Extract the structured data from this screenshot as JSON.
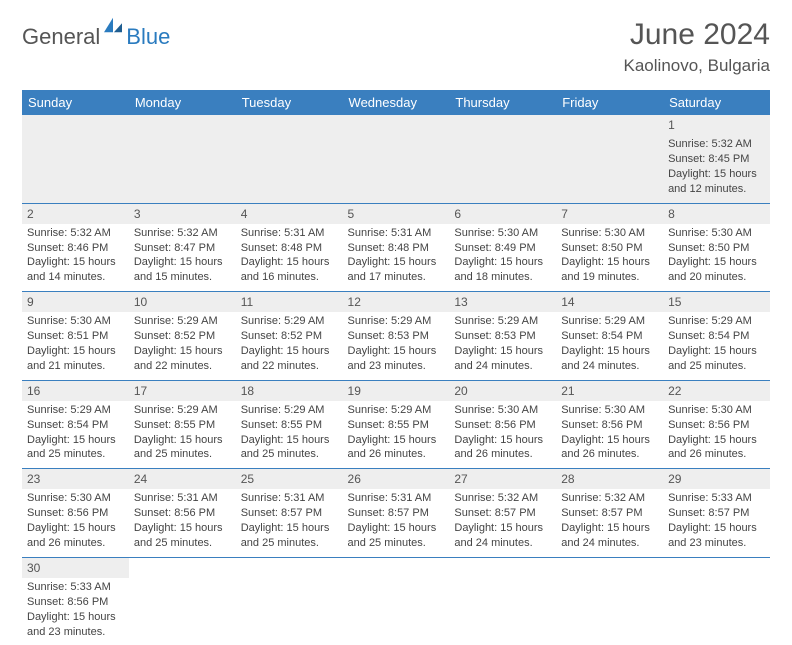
{
  "brand": {
    "part1": "General",
    "part2": "Blue"
  },
  "title": "June 2024",
  "location": "Kaolinovo, Bulgaria",
  "colors": {
    "header_bg": "#3a7fbf",
    "header_text": "#ffffff",
    "daynum_bg": "#eeeeee",
    "rule": "#3a7fbf"
  },
  "weekdays": [
    "Sunday",
    "Monday",
    "Tuesday",
    "Wednesday",
    "Thursday",
    "Friday",
    "Saturday"
  ],
  "weeks": [
    [
      null,
      null,
      null,
      null,
      null,
      null,
      {
        "n": "1",
        "sr": "Sunrise: 5:32 AM",
        "ss": "Sunset: 8:45 PM",
        "d1": "Daylight: 15 hours",
        "d2": "and 12 minutes."
      }
    ],
    [
      {
        "n": "2",
        "sr": "Sunrise: 5:32 AM",
        "ss": "Sunset: 8:46 PM",
        "d1": "Daylight: 15 hours",
        "d2": "and 14 minutes."
      },
      {
        "n": "3",
        "sr": "Sunrise: 5:32 AM",
        "ss": "Sunset: 8:47 PM",
        "d1": "Daylight: 15 hours",
        "d2": "and 15 minutes."
      },
      {
        "n": "4",
        "sr": "Sunrise: 5:31 AM",
        "ss": "Sunset: 8:48 PM",
        "d1": "Daylight: 15 hours",
        "d2": "and 16 minutes."
      },
      {
        "n": "5",
        "sr": "Sunrise: 5:31 AM",
        "ss": "Sunset: 8:48 PM",
        "d1": "Daylight: 15 hours",
        "d2": "and 17 minutes."
      },
      {
        "n": "6",
        "sr": "Sunrise: 5:30 AM",
        "ss": "Sunset: 8:49 PM",
        "d1": "Daylight: 15 hours",
        "d2": "and 18 minutes."
      },
      {
        "n": "7",
        "sr": "Sunrise: 5:30 AM",
        "ss": "Sunset: 8:50 PM",
        "d1": "Daylight: 15 hours",
        "d2": "and 19 minutes."
      },
      {
        "n": "8",
        "sr": "Sunrise: 5:30 AM",
        "ss": "Sunset: 8:50 PM",
        "d1": "Daylight: 15 hours",
        "d2": "and 20 minutes."
      }
    ],
    [
      {
        "n": "9",
        "sr": "Sunrise: 5:30 AM",
        "ss": "Sunset: 8:51 PM",
        "d1": "Daylight: 15 hours",
        "d2": "and 21 minutes."
      },
      {
        "n": "10",
        "sr": "Sunrise: 5:29 AM",
        "ss": "Sunset: 8:52 PM",
        "d1": "Daylight: 15 hours",
        "d2": "and 22 minutes."
      },
      {
        "n": "11",
        "sr": "Sunrise: 5:29 AM",
        "ss": "Sunset: 8:52 PM",
        "d1": "Daylight: 15 hours",
        "d2": "and 22 minutes."
      },
      {
        "n": "12",
        "sr": "Sunrise: 5:29 AM",
        "ss": "Sunset: 8:53 PM",
        "d1": "Daylight: 15 hours",
        "d2": "and 23 minutes."
      },
      {
        "n": "13",
        "sr": "Sunrise: 5:29 AM",
        "ss": "Sunset: 8:53 PM",
        "d1": "Daylight: 15 hours",
        "d2": "and 24 minutes."
      },
      {
        "n": "14",
        "sr": "Sunrise: 5:29 AM",
        "ss": "Sunset: 8:54 PM",
        "d1": "Daylight: 15 hours",
        "d2": "and 24 minutes."
      },
      {
        "n": "15",
        "sr": "Sunrise: 5:29 AM",
        "ss": "Sunset: 8:54 PM",
        "d1": "Daylight: 15 hours",
        "d2": "and 25 minutes."
      }
    ],
    [
      {
        "n": "16",
        "sr": "Sunrise: 5:29 AM",
        "ss": "Sunset: 8:54 PM",
        "d1": "Daylight: 15 hours",
        "d2": "and 25 minutes."
      },
      {
        "n": "17",
        "sr": "Sunrise: 5:29 AM",
        "ss": "Sunset: 8:55 PM",
        "d1": "Daylight: 15 hours",
        "d2": "and 25 minutes."
      },
      {
        "n": "18",
        "sr": "Sunrise: 5:29 AM",
        "ss": "Sunset: 8:55 PM",
        "d1": "Daylight: 15 hours",
        "d2": "and 25 minutes."
      },
      {
        "n": "19",
        "sr": "Sunrise: 5:29 AM",
        "ss": "Sunset: 8:55 PM",
        "d1": "Daylight: 15 hours",
        "d2": "and 26 minutes."
      },
      {
        "n": "20",
        "sr": "Sunrise: 5:30 AM",
        "ss": "Sunset: 8:56 PM",
        "d1": "Daylight: 15 hours",
        "d2": "and 26 minutes."
      },
      {
        "n": "21",
        "sr": "Sunrise: 5:30 AM",
        "ss": "Sunset: 8:56 PM",
        "d1": "Daylight: 15 hours",
        "d2": "and 26 minutes."
      },
      {
        "n": "22",
        "sr": "Sunrise: 5:30 AM",
        "ss": "Sunset: 8:56 PM",
        "d1": "Daylight: 15 hours",
        "d2": "and 26 minutes."
      }
    ],
    [
      {
        "n": "23",
        "sr": "Sunrise: 5:30 AM",
        "ss": "Sunset: 8:56 PM",
        "d1": "Daylight: 15 hours",
        "d2": "and 26 minutes."
      },
      {
        "n": "24",
        "sr": "Sunrise: 5:31 AM",
        "ss": "Sunset: 8:56 PM",
        "d1": "Daylight: 15 hours",
        "d2": "and 25 minutes."
      },
      {
        "n": "25",
        "sr": "Sunrise: 5:31 AM",
        "ss": "Sunset: 8:57 PM",
        "d1": "Daylight: 15 hours",
        "d2": "and 25 minutes."
      },
      {
        "n": "26",
        "sr": "Sunrise: 5:31 AM",
        "ss": "Sunset: 8:57 PM",
        "d1": "Daylight: 15 hours",
        "d2": "and 25 minutes."
      },
      {
        "n": "27",
        "sr": "Sunrise: 5:32 AM",
        "ss": "Sunset: 8:57 PM",
        "d1": "Daylight: 15 hours",
        "d2": "and 24 minutes."
      },
      {
        "n": "28",
        "sr": "Sunrise: 5:32 AM",
        "ss": "Sunset: 8:57 PM",
        "d1": "Daylight: 15 hours",
        "d2": "and 24 minutes."
      },
      {
        "n": "29",
        "sr": "Sunrise: 5:33 AM",
        "ss": "Sunset: 8:57 PM",
        "d1": "Daylight: 15 hours",
        "d2": "and 23 minutes."
      }
    ],
    [
      {
        "n": "30",
        "sr": "Sunrise: 5:33 AM",
        "ss": "Sunset: 8:56 PM",
        "d1": "Daylight: 15 hours",
        "d2": "and 23 minutes."
      },
      null,
      null,
      null,
      null,
      null,
      null
    ]
  ]
}
